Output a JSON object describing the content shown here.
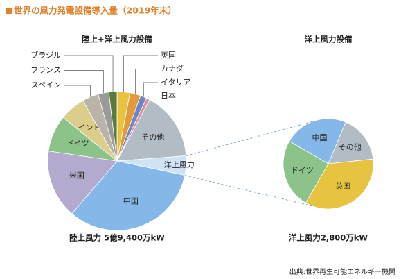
{
  "title": "世界の風力発電設備導入量（2019年末）",
  "source": "出典:世界再生可能エネルギー機関",
  "chart_data": [
    {
      "type": "pie",
      "title": "陸上+洋上風力設備",
      "caption": "陸上風力 5億9,400万kW",
      "categories": [
        "英国",
        "カナダ",
        "イタリア",
        "日本",
        "その他",
        "洋上風力",
        "中国",
        "米国",
        "ドイツ",
        "インド",
        "スペイン",
        "フランス",
        "ブラジル"
      ],
      "values": [
        3,
        2.5,
        1.5,
        0.8,
        16,
        4.5,
        33,
        16,
        8.5,
        6,
        3.8,
        2.5,
        1.9
      ],
      "colors": [
        "#e6c43f",
        "#e39a3a",
        "#6a88c8",
        "#e08a9a",
        "#b2bcc4",
        "#cfe3f5",
        "#85b8e8",
        "#b3aacd",
        "#8cc38a",
        "#dccd8a",
        "#bab3a8",
        "#9a9a9a",
        "#5c7a3c"
      ]
    },
    {
      "type": "pie",
      "title": "洋上風力設備",
      "caption": "洋上風力2,800万kW",
      "categories": [
        "中国",
        "その他",
        "英国",
        "ドイツ"
      ],
      "values": [
        23,
        17,
        35,
        25
      ],
      "colors": [
        "#85b8e8",
        "#b2bcc4",
        "#e6c43f",
        "#8cc38a"
      ]
    }
  ]
}
